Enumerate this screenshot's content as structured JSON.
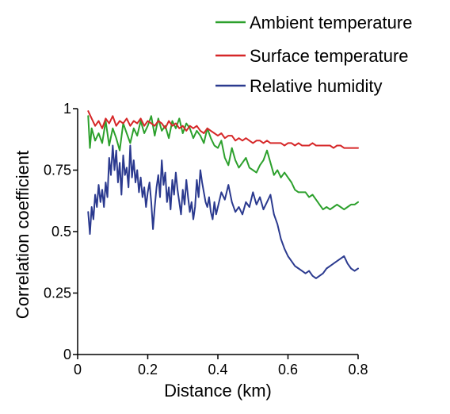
{
  "chart_data": {
    "type": "line",
    "title": "",
    "xlabel": "Distance (km)",
    "ylabel": "Correlation coefficient",
    "xlim": [
      0,
      0.8
    ],
    "ylim": [
      0,
      1
    ],
    "xticks": [
      "0",
      "0.2",
      "0.4",
      "0.6",
      "0.8"
    ],
    "yticks": [
      "0",
      "0.25",
      "0.5",
      "0.75",
      "1"
    ],
    "grid": false,
    "legend_position": "top-right",
    "series": [
      {
        "name": "Ambient temperature",
        "color": "#2ca02c",
        "x": [
          0.03,
          0.035,
          0.04,
          0.05,
          0.06,
          0.07,
          0.08,
          0.09,
          0.1,
          0.11,
          0.12,
          0.13,
          0.14,
          0.15,
          0.16,
          0.17,
          0.18,
          0.19,
          0.2,
          0.21,
          0.22,
          0.23,
          0.24,
          0.25,
          0.26,
          0.27,
          0.28,
          0.29,
          0.3,
          0.31,
          0.32,
          0.33,
          0.34,
          0.35,
          0.36,
          0.37,
          0.38,
          0.39,
          0.4,
          0.41,
          0.42,
          0.43,
          0.44,
          0.45,
          0.46,
          0.47,
          0.48,
          0.49,
          0.5,
          0.51,
          0.52,
          0.53,
          0.54,
          0.55,
          0.56,
          0.57,
          0.58,
          0.59,
          0.6,
          0.61,
          0.62,
          0.63,
          0.64,
          0.65,
          0.66,
          0.67,
          0.68,
          0.69,
          0.7,
          0.71,
          0.72,
          0.73,
          0.74,
          0.75,
          0.76,
          0.77,
          0.78,
          0.79,
          0.8
        ],
        "y": [
          0.97,
          0.84,
          0.92,
          0.87,
          0.9,
          0.86,
          0.95,
          0.85,
          0.92,
          0.88,
          0.83,
          0.94,
          0.9,
          0.86,
          0.92,
          0.89,
          0.95,
          0.9,
          0.93,
          0.97,
          0.89,
          0.96,
          0.91,
          0.93,
          0.88,
          0.95,
          0.92,
          0.96,
          0.9,
          0.94,
          0.92,
          0.88,
          0.91,
          0.89,
          0.86,
          0.92,
          0.88,
          0.85,
          0.84,
          0.87,
          0.8,
          0.77,
          0.84,
          0.79,
          0.76,
          0.78,
          0.8,
          0.76,
          0.75,
          0.74,
          0.77,
          0.79,
          0.83,
          0.78,
          0.73,
          0.75,
          0.72,
          0.74,
          0.72,
          0.7,
          0.67,
          0.66,
          0.66,
          0.66,
          0.64,
          0.65,
          0.63,
          0.61,
          0.59,
          0.6,
          0.59,
          0.6,
          0.61,
          0.6,
          0.59,
          0.6,
          0.61,
          0.61,
          0.62
        ]
      },
      {
        "name": "Surface temperature",
        "color": "#d62728",
        "x": [
          0.03,
          0.04,
          0.05,
          0.06,
          0.07,
          0.08,
          0.09,
          0.1,
          0.11,
          0.12,
          0.13,
          0.14,
          0.15,
          0.16,
          0.17,
          0.18,
          0.19,
          0.2,
          0.21,
          0.22,
          0.23,
          0.24,
          0.25,
          0.26,
          0.27,
          0.28,
          0.29,
          0.3,
          0.31,
          0.32,
          0.33,
          0.34,
          0.35,
          0.36,
          0.37,
          0.38,
          0.39,
          0.4,
          0.41,
          0.42,
          0.43,
          0.44,
          0.45,
          0.46,
          0.47,
          0.48,
          0.49,
          0.5,
          0.51,
          0.52,
          0.53,
          0.54,
          0.55,
          0.56,
          0.57,
          0.58,
          0.59,
          0.6,
          0.61,
          0.62,
          0.63,
          0.64,
          0.65,
          0.66,
          0.67,
          0.68,
          0.69,
          0.7,
          0.71,
          0.72,
          0.73,
          0.74,
          0.75,
          0.76,
          0.77,
          0.78,
          0.79,
          0.8
        ],
        "y": [
          0.99,
          0.96,
          0.93,
          0.95,
          0.92,
          0.96,
          0.94,
          0.97,
          0.93,
          0.95,
          0.94,
          0.96,
          0.93,
          0.95,
          0.94,
          0.96,
          0.93,
          0.95,
          0.94,
          0.93,
          0.95,
          0.94,
          0.92,
          0.95,
          0.93,
          0.94,
          0.92,
          0.93,
          0.91,
          0.93,
          0.92,
          0.93,
          0.91,
          0.9,
          0.92,
          0.91,
          0.9,
          0.89,
          0.9,
          0.88,
          0.89,
          0.89,
          0.87,
          0.88,
          0.87,
          0.88,
          0.87,
          0.86,
          0.87,
          0.87,
          0.86,
          0.87,
          0.86,
          0.86,
          0.86,
          0.86,
          0.85,
          0.86,
          0.86,
          0.85,
          0.86,
          0.85,
          0.85,
          0.85,
          0.86,
          0.85,
          0.85,
          0.85,
          0.85,
          0.85,
          0.84,
          0.85,
          0.85,
          0.84,
          0.84,
          0.84,
          0.84,
          0.84
        ]
      },
      {
        "name": "Relative humidity",
        "color": "#2b3a8f",
        "x": [
          0.03,
          0.035,
          0.04,
          0.045,
          0.05,
          0.055,
          0.06,
          0.065,
          0.07,
          0.075,
          0.08,
          0.085,
          0.09,
          0.095,
          0.1,
          0.105,
          0.11,
          0.115,
          0.12,
          0.125,
          0.13,
          0.135,
          0.14,
          0.145,
          0.15,
          0.155,
          0.16,
          0.165,
          0.17,
          0.175,
          0.18,
          0.185,
          0.19,
          0.195,
          0.2,
          0.205,
          0.21,
          0.215,
          0.22,
          0.225,
          0.23,
          0.235,
          0.24,
          0.245,
          0.25,
          0.255,
          0.26,
          0.265,
          0.27,
          0.275,
          0.28,
          0.285,
          0.29,
          0.295,
          0.3,
          0.305,
          0.31,
          0.315,
          0.32,
          0.325,
          0.33,
          0.335,
          0.34,
          0.345,
          0.35,
          0.355,
          0.36,
          0.365,
          0.37,
          0.375,
          0.38,
          0.385,
          0.39,
          0.395,
          0.4,
          0.41,
          0.42,
          0.43,
          0.44,
          0.45,
          0.46,
          0.47,
          0.48,
          0.49,
          0.5,
          0.51,
          0.52,
          0.53,
          0.54,
          0.55,
          0.56,
          0.57,
          0.58,
          0.59,
          0.6,
          0.61,
          0.62,
          0.63,
          0.64,
          0.65,
          0.66,
          0.67,
          0.68,
          0.69,
          0.7,
          0.71,
          0.72,
          0.73,
          0.74,
          0.75,
          0.76,
          0.77,
          0.78,
          0.79,
          0.8
        ],
        "y": [
          0.58,
          0.49,
          0.6,
          0.55,
          0.65,
          0.6,
          0.69,
          0.62,
          0.67,
          0.6,
          0.7,
          0.64,
          0.8,
          0.73,
          0.85,
          0.75,
          0.83,
          0.7,
          0.78,
          0.65,
          0.81,
          0.73,
          0.76,
          0.68,
          0.85,
          0.72,
          0.79,
          0.7,
          0.75,
          0.66,
          0.72,
          0.64,
          0.68,
          0.6,
          0.66,
          0.7,
          0.62,
          0.51,
          0.6,
          0.68,
          0.73,
          0.64,
          0.79,
          0.69,
          0.74,
          0.62,
          0.68,
          0.59,
          0.71,
          0.65,
          0.74,
          0.67,
          0.62,
          0.57,
          0.67,
          0.61,
          0.71,
          0.64,
          0.58,
          0.62,
          0.55,
          0.6,
          0.71,
          0.64,
          0.75,
          0.7,
          0.66,
          0.62,
          0.6,
          0.64,
          0.58,
          0.55,
          0.62,
          0.57,
          0.6,
          0.66,
          0.63,
          0.69,
          0.62,
          0.58,
          0.6,
          0.57,
          0.62,
          0.6,
          0.66,
          0.61,
          0.64,
          0.59,
          0.62,
          0.65,
          0.57,
          0.53,
          0.47,
          0.43,
          0.4,
          0.38,
          0.36,
          0.35,
          0.34,
          0.33,
          0.34,
          0.32,
          0.31,
          0.32,
          0.33,
          0.35,
          0.36,
          0.37,
          0.38,
          0.39,
          0.4,
          0.37,
          0.35,
          0.34,
          0.35
        ]
      }
    ]
  }
}
